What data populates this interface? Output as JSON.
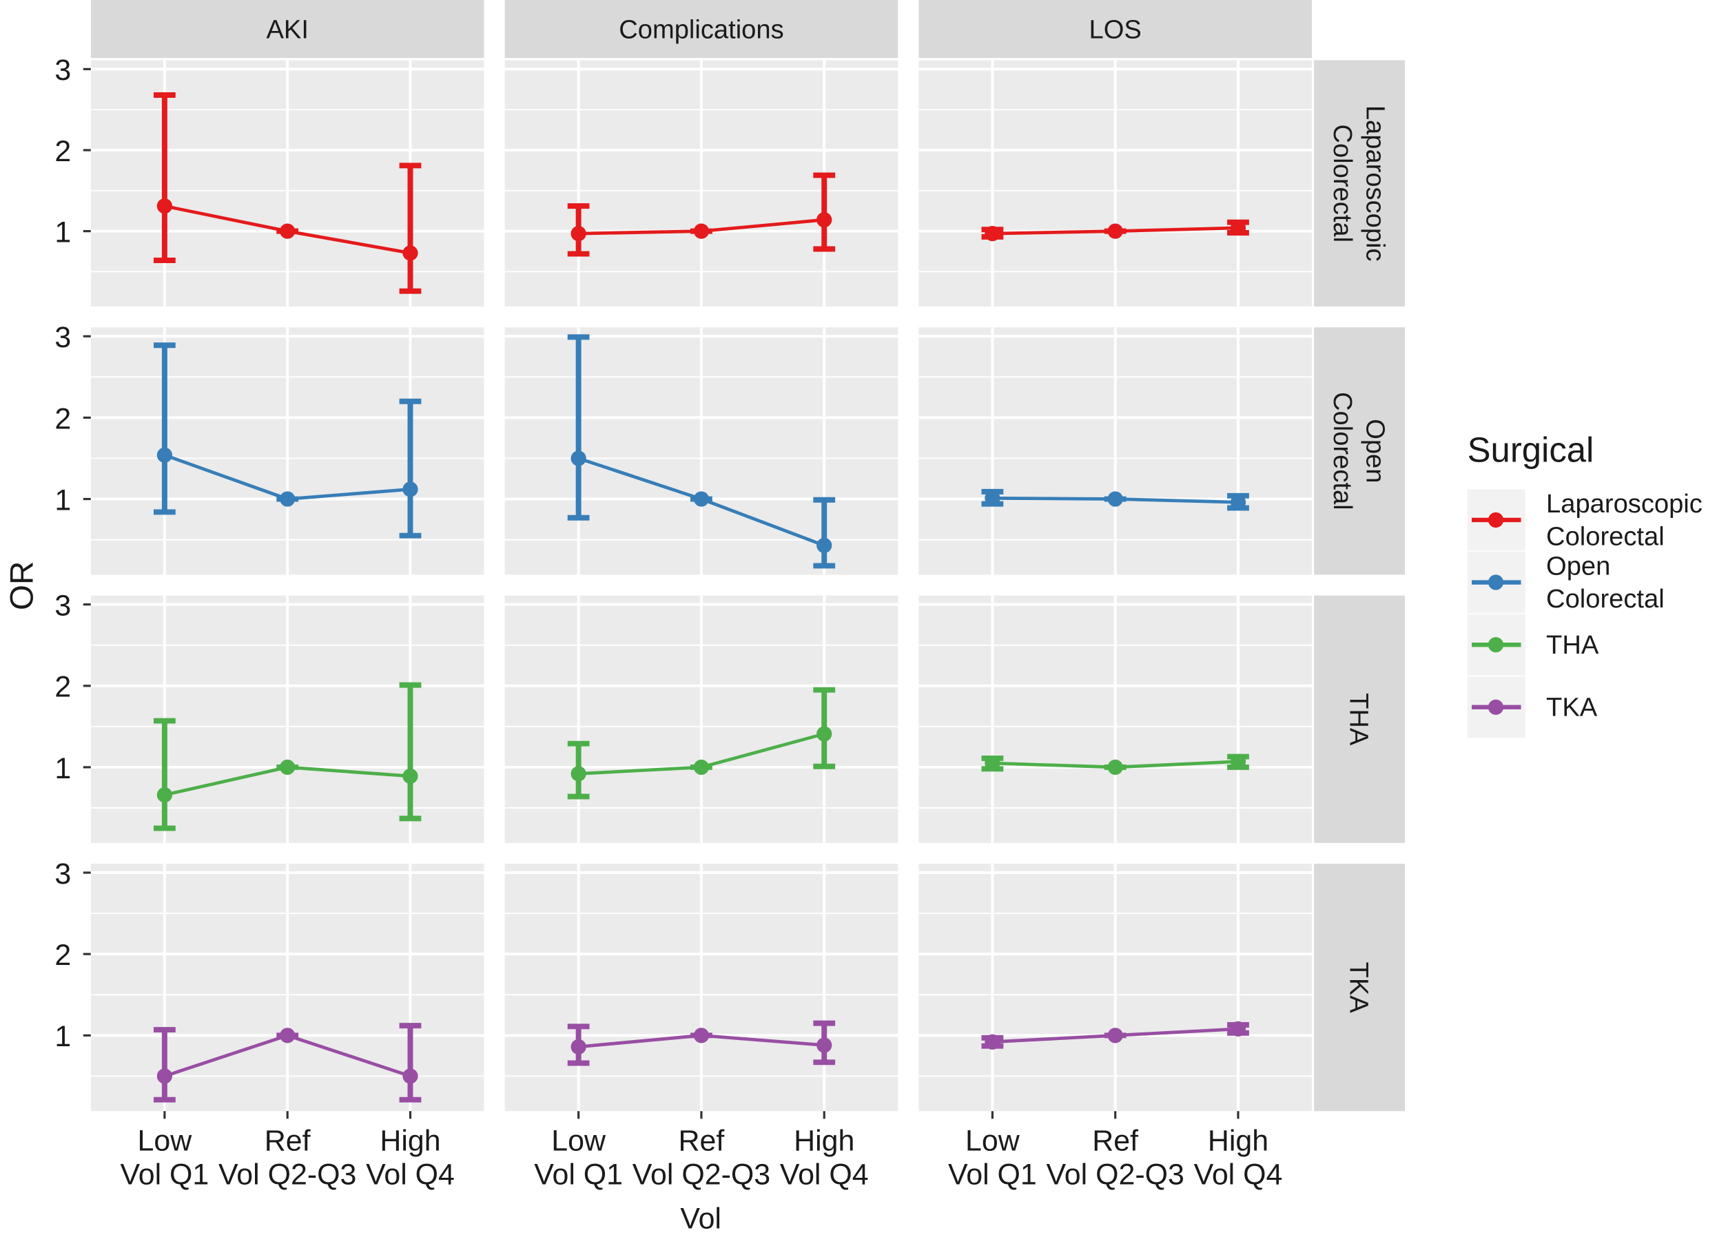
{
  "chart_data": {
    "type": "errorbar",
    "x_label": "Vol",
    "y_label": "OR",
    "legend_title": "Surgical",
    "facets": [
      "AKI",
      "Complications",
      "LOS"
    ],
    "categories": [
      "Low Vol Q1",
      "Ref Vol Q2-Q3",
      "High Vol Q4"
    ],
    "ylim": [
      0.07,
      3.11
    ],
    "yticks": [
      1,
      2,
      3
    ],
    "grid": true,
    "legend_position": "right",
    "series": [
      {
        "name": "Laparoscopic Colorectal",
        "color": "#e41a1c",
        "panels": [
          {
            "values": [
              1.31,
              1,
              0.73
            ],
            "lower": [
              0.64,
              1,
              0.26
            ],
            "upper": [
              2.68,
              1,
              1.81
            ]
          },
          {
            "values": [
              0.97,
              1,
              1.14
            ],
            "lower": [
              0.72,
              1,
              0.78
            ],
            "upper": [
              1.31,
              1,
              1.69
            ]
          },
          {
            "values": [
              0.97,
              1,
              1.04
            ],
            "lower": [
              0.93,
              1,
              0.98
            ],
            "upper": [
              1.02,
              1,
              1.11
            ]
          }
        ]
      },
      {
        "name": "Open Colorectal",
        "color": "#377eb8",
        "panels": [
          {
            "values": [
              1.54,
              1,
              1.12
            ],
            "lower": [
              0.84,
              1,
              0.55
            ],
            "upper": [
              2.89,
              1,
              2.2
            ]
          },
          {
            "values": [
              1.5,
              1,
              0.43
            ],
            "lower": [
              0.77,
              1,
              0.18
            ],
            "upper": [
              2.99,
              1,
              0.99
            ]
          },
          {
            "values": [
              1.01,
              1,
              0.96
            ],
            "lower": [
              0.94,
              1,
              0.89
            ],
            "upper": [
              1.09,
              1,
              1.04
            ]
          }
        ]
      },
      {
        "name": "THA",
        "color": "#4daf4a",
        "panels": [
          {
            "values": [
              0.66,
              1,
              0.89
            ],
            "lower": [
              0.25,
              1,
              0.37
            ],
            "upper": [
              1.57,
              1,
              2.01
            ]
          },
          {
            "values": [
              0.92,
              1,
              1.41
            ],
            "lower": [
              0.64,
              1,
              1.01
            ],
            "upper": [
              1.29,
              1,
              1.95
            ]
          },
          {
            "values": [
              1.05,
              1,
              1.07
            ],
            "lower": [
              0.98,
              1,
              1.0
            ],
            "upper": [
              1.11,
              1,
              1.13
            ]
          }
        ]
      },
      {
        "name": "TKA",
        "color": "#984ea3",
        "panels": [
          {
            "values": [
              0.5,
              1,
              0.5
            ],
            "lower": [
              0.21,
              1,
              0.21
            ],
            "upper": [
              1.07,
              1,
              1.12
            ]
          },
          {
            "values": [
              0.86,
              1,
              0.88
            ],
            "lower": [
              0.66,
              1,
              0.67
            ],
            "upper": [
              1.11,
              1,
              1.15
            ]
          },
          {
            "values": [
              0.92,
              1,
              1.08
            ],
            "lower": [
              0.87,
              1,
              1.03
            ],
            "upper": [
              0.97,
              1,
              1.13
            ]
          }
        ]
      }
    ]
  }
}
